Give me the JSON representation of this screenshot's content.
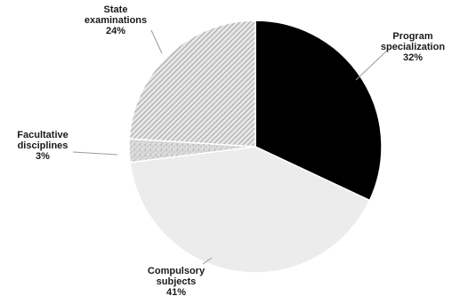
{
  "chart_data": {
    "type": "pie",
    "title": "",
    "slices": [
      {
        "label_lines": [
          "Program",
          "specialization"
        ],
        "value": 32,
        "value_label": "32%",
        "fill": "#000000",
        "pattern": "solid"
      },
      {
        "label_lines": [
          "Compulsory",
          "subjects"
        ],
        "value": 41,
        "value_label": "41%",
        "fill": "#ececec",
        "pattern": "solid"
      },
      {
        "label_lines": [
          "Facultative",
          "disciplines"
        ],
        "value": 3,
        "value_label": "3%",
        "fill": "#d6d6d6",
        "pattern": "speckle"
      },
      {
        "label_lines": [
          "State",
          "examinations"
        ],
        "value": 24,
        "value_label": "24%",
        "fill": "#c8c8c8",
        "pattern": "diagonal-hatch"
      }
    ],
    "legend": "none",
    "data_labels": "outside-with-leader-lines"
  }
}
